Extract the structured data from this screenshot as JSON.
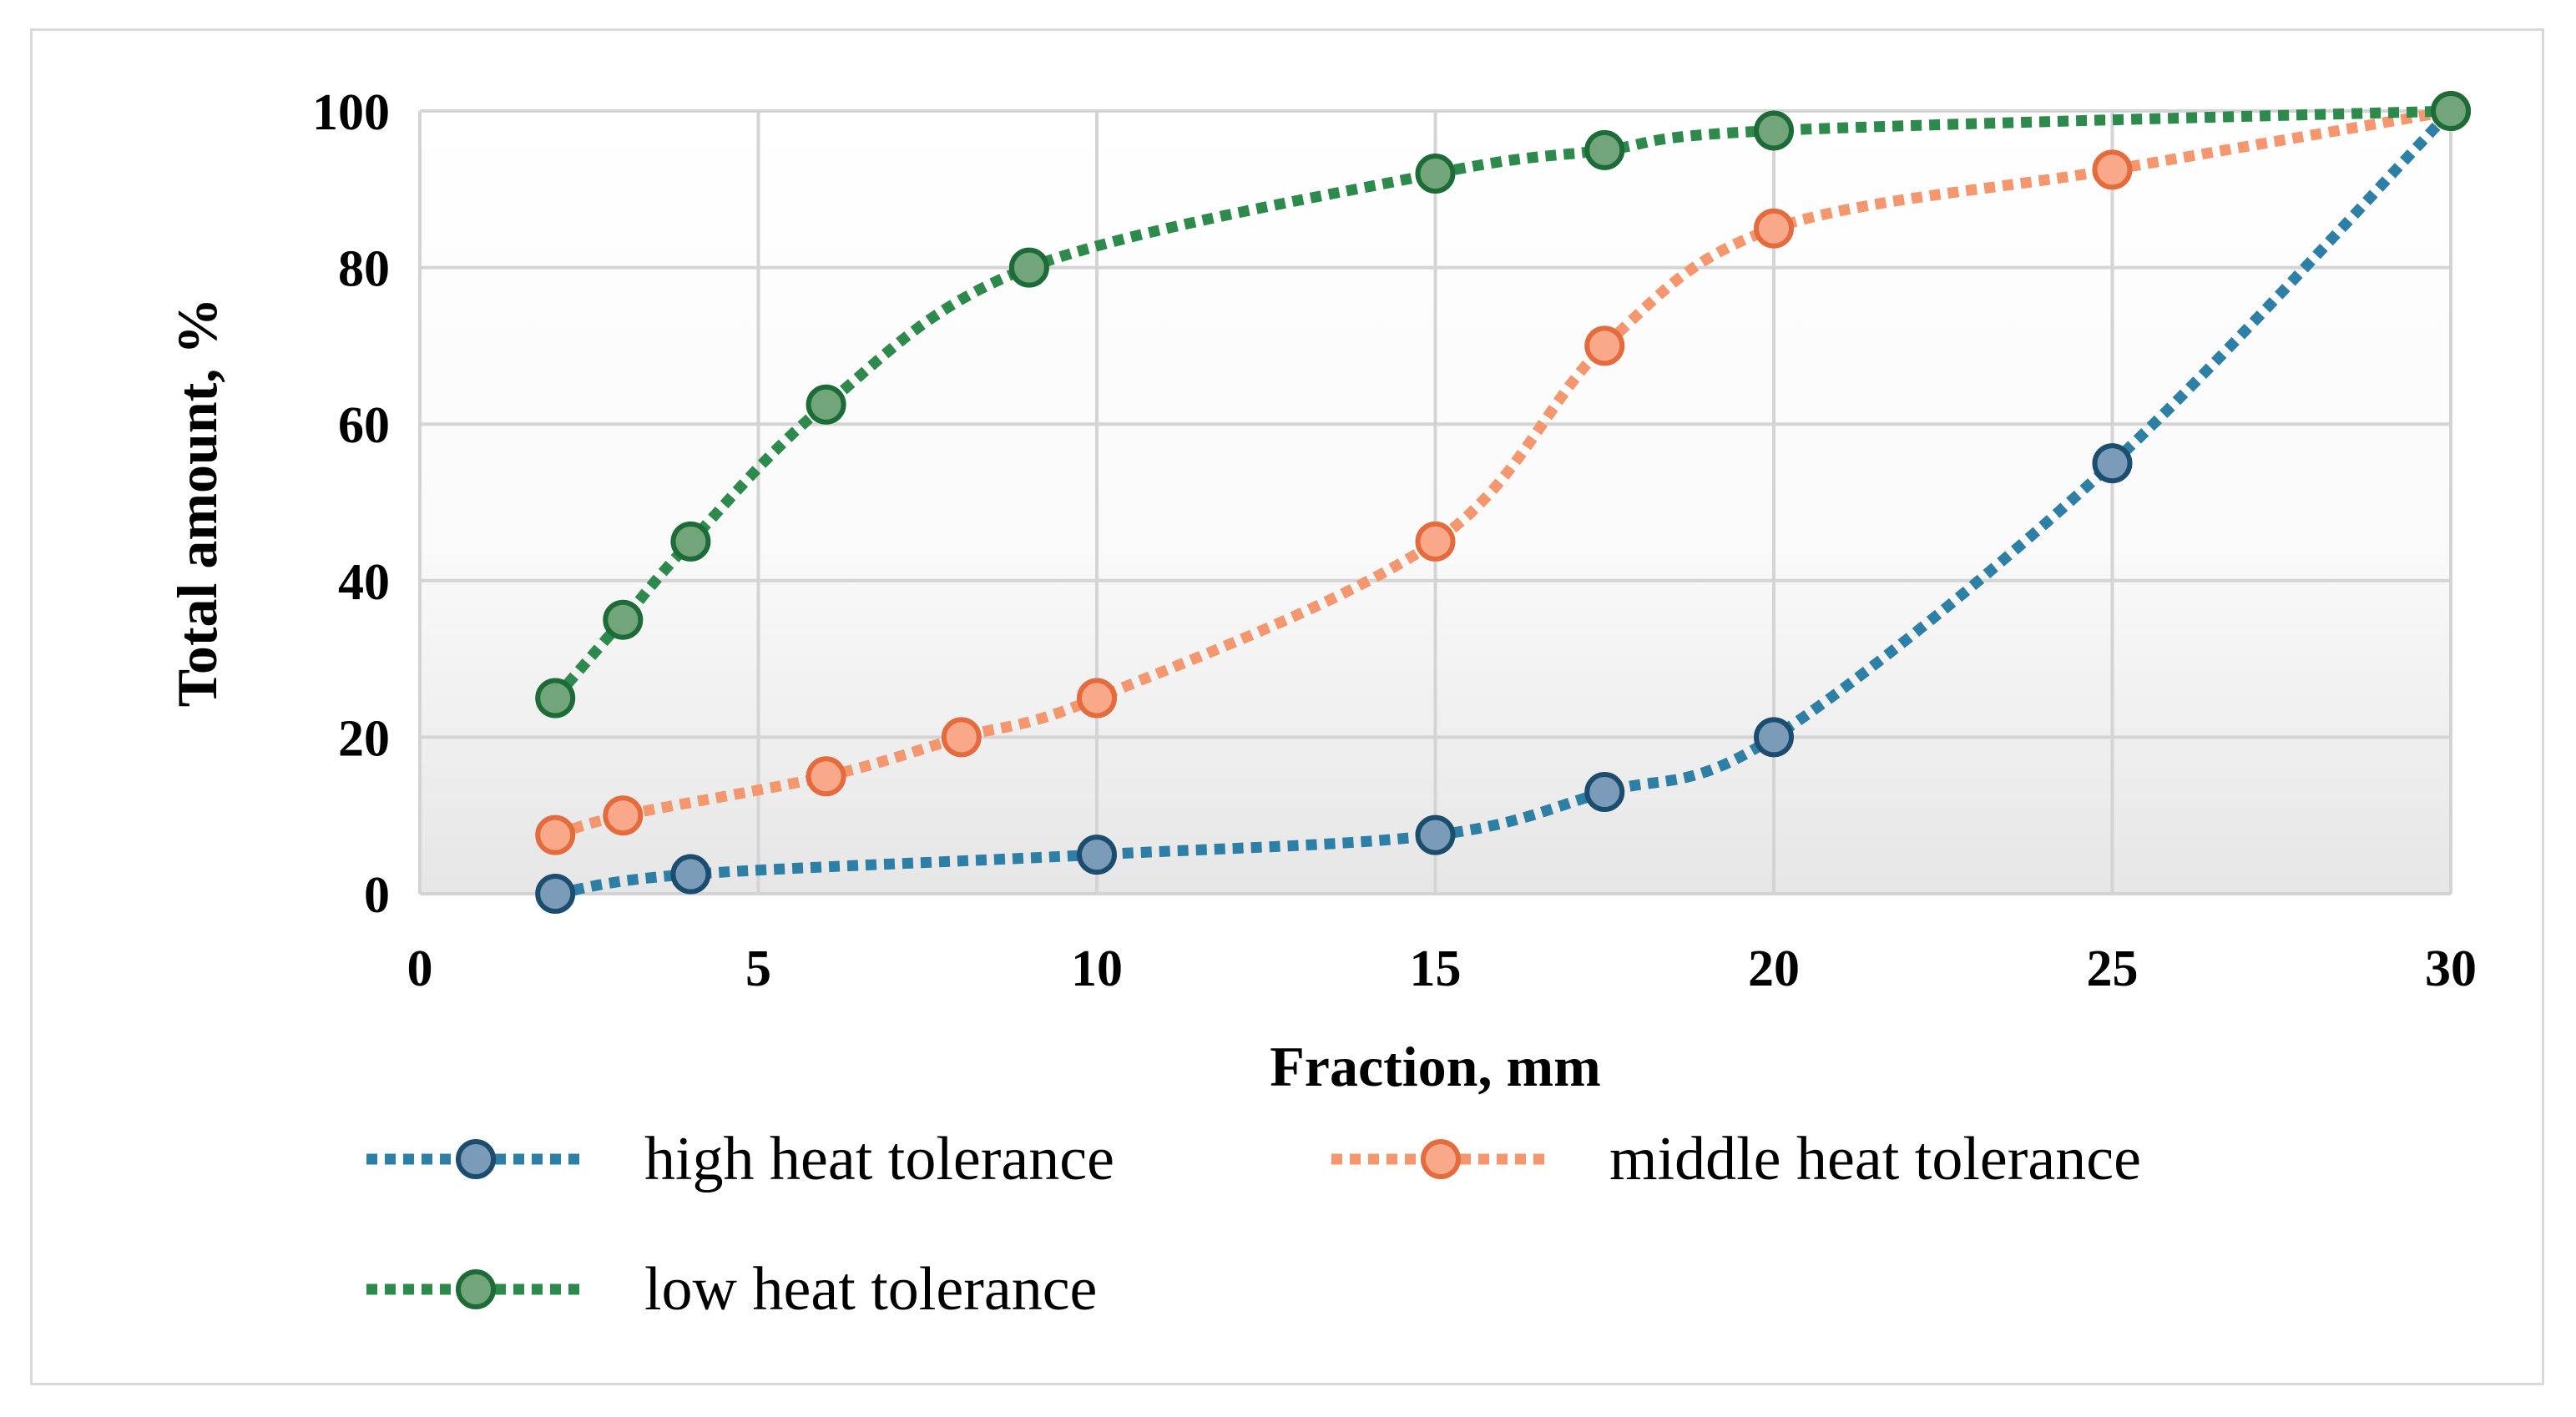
{
  "chart_data": {
    "type": "line",
    "title": "",
    "xlabel": "Fraction, mm",
    "ylabel": "Total amount, %",
    "xlim": [
      0,
      30
    ],
    "ylim": [
      0,
      100
    ],
    "xticks": [
      0,
      5,
      10,
      15,
      20,
      25,
      30
    ],
    "yticks": [
      0,
      20,
      40,
      60,
      80,
      100
    ],
    "grid": true,
    "legend_position": "bottom",
    "line_style": "dotted",
    "series": [
      {
        "name": "high heat tolerance",
        "color": "#2e7fa6",
        "marker_fill": "#7b9cb8",
        "marker_stroke": "#1d4d6e",
        "x": [
          2,
          4,
          10,
          15,
          17.5,
          20,
          25,
          30
        ],
        "y": [
          0,
          2.5,
          5,
          7.5,
          13,
          20,
          55,
          100
        ]
      },
      {
        "name": "middle heat tolerance",
        "color": "#f4966e",
        "marker_fill": "#f9a98a",
        "marker_stroke": "#e46b3d",
        "x": [
          2,
          3,
          6,
          8,
          10,
          15,
          17.5,
          20,
          25,
          30
        ],
        "y": [
          7.5,
          10,
          15,
          20,
          25,
          45,
          70,
          85,
          92.5,
          100
        ]
      },
      {
        "name": "low heat tolerance",
        "color": "#2e8a4c",
        "marker_fill": "#72a67a",
        "marker_stroke": "#1d6b36",
        "x": [
          2,
          3,
          4,
          6,
          9,
          15,
          17.5,
          20,
          30
        ],
        "y": [
          25,
          35,
          45,
          62.5,
          80,
          92,
          95,
          97.5,
          100
        ]
      }
    ]
  }
}
